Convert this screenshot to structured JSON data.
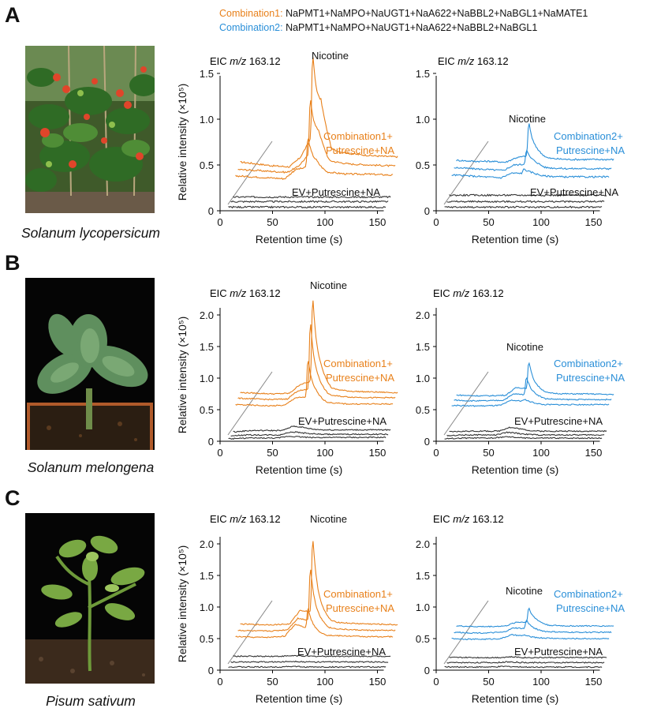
{
  "header": {
    "combination1_prefix": "Combination1:",
    "combination1_genes": " NaPMT1+NaMPO+NaUGT1+NaA622+NaBBL2+NaBGL1+NaMATE1",
    "combination2_prefix": "Combination2:",
    "combination2_genes": " NaPMT1+NaMPO+NaUGT1+NaA622+NaBBL2+NaBGL1"
  },
  "colors": {
    "combination1": "#e8801a",
    "combination2": "#2a8fd8",
    "control": "#333333",
    "axis": "#000000"
  },
  "panels": [
    {
      "letter": "A",
      "species": "Solanum lycopersicum",
      "photo_icon": "tomato-plant-photo"
    },
    {
      "letter": "B",
      "species": "Solanum melongena",
      "photo_icon": "eggplant-seedling-photo"
    },
    {
      "letter": "C",
      "species": "Pisum sativum",
      "photo_icon": "pea-seedling-photo"
    }
  ],
  "chart_data": [
    {
      "type": "line",
      "panel": "A",
      "title": "EIC m/z 163.12",
      "ylabel": "Relative intensity (×10⁵)",
      "xlabel": "Retention time (s)",
      "xlim": [
        0,
        165
      ],
      "ylim": [
        0,
        1.75
      ],
      "xticks": [
        "0",
        "50",
        "100",
        "150"
      ],
      "yticks": [
        "0",
        "0.5",
        "1.0",
        "1.5"
      ],
      "annotations": [
        "Nicotine",
        "Combination1+",
        "Putrescine+NA",
        "EV+Putrescine+NA"
      ],
      "series": [
        {
          "group": "combination",
          "name": "Combination1+Putrescine+NA",
          "values": [
            0.53,
            0.51,
            0.49,
            0.48,
            0.58,
            1.74,
            1.06,
            0.66,
            0.62,
            0.6,
            0.59
          ]
        },
        {
          "group": "combination",
          "name": "Combination1+Putrescine+NA",
          "values": [
            0.45,
            0.44,
            0.43,
            0.42,
            0.48,
            1.25,
            0.78,
            0.54,
            0.51,
            0.5,
            0.49
          ]
        },
        {
          "group": "combination",
          "name": "Combination1+Putrescine+NA",
          "values": [
            0.38,
            0.37,
            0.36,
            0.35,
            0.45,
            0.81,
            0.5,
            0.42,
            0.4,
            0.4,
            0.39
          ]
        },
        {
          "group": "control",
          "name": "EV+Putrescine+NA",
          "values": [
            0.15,
            0.15,
            0.15,
            0.15,
            0.15,
            0.15,
            0.15,
            0.15,
            0.15,
            0.15,
            0.15
          ]
        },
        {
          "group": "control",
          "name": "EV+Putrescine+NA",
          "values": [
            0.1,
            0.1,
            0.1,
            0.1,
            0.1,
            0.1,
            0.1,
            0.1,
            0.1,
            0.1,
            0.1
          ]
        },
        {
          "group": "control",
          "name": "EV+Putrescine+NA",
          "values": [
            0.04,
            0.04,
            0.04,
            0.04,
            0.04,
            0.04,
            0.04,
            0.04,
            0.04,
            0.04,
            0.04
          ]
        }
      ]
    },
    {
      "type": "line",
      "panel": "A",
      "title": "EIC m/z 163.12",
      "ylabel": "",
      "xlabel": "Retention time (s)",
      "xlim": [
        0,
        165
      ],
      "ylim": [
        0,
        1.75
      ],
      "xticks": [
        "0",
        "50",
        "100",
        "150"
      ],
      "yticks": [
        "0",
        "0.5",
        "1.0",
        "1.5"
      ],
      "annotations": [
        "Nicotine",
        "Combination2+",
        "Putrescine+NA",
        "EV+Putrescine+NA"
      ],
      "series": [
        {
          "group": "combination",
          "name": "Combination2+Putrescine+NA",
          "values": [
            0.55,
            0.54,
            0.54,
            0.53,
            0.58,
            0.98,
            0.62,
            0.57,
            0.56,
            0.56,
            0.56
          ]
        },
        {
          "group": "combination",
          "name": "Combination2+Putrescine+NA",
          "values": [
            0.47,
            0.46,
            0.45,
            0.44,
            0.5,
            0.67,
            0.52,
            0.47,
            0.46,
            0.46,
            0.46
          ]
        },
        {
          "group": "combination",
          "name": "Combination2+Putrescine+NA",
          "values": [
            0.39,
            0.38,
            0.37,
            0.36,
            0.41,
            0.46,
            0.41,
            0.38,
            0.37,
            0.37,
            0.37
          ]
        },
        {
          "group": "control",
          "name": "EV+Putrescine+NA",
          "values": [
            0.17,
            0.17,
            0.17,
            0.17,
            0.17,
            0.17,
            0.17,
            0.17,
            0.17,
            0.17,
            0.17
          ]
        },
        {
          "group": "control",
          "name": "EV+Putrescine+NA",
          "values": [
            0.1,
            0.1,
            0.1,
            0.1,
            0.1,
            0.1,
            0.1,
            0.1,
            0.1,
            0.1,
            0.1
          ]
        },
        {
          "group": "control",
          "name": "EV+Putrescine+NA",
          "values": [
            0.04,
            0.04,
            0.04,
            0.04,
            0.04,
            0.04,
            0.04,
            0.04,
            0.04,
            0.04,
            0.04
          ]
        }
      ]
    },
    {
      "type": "line",
      "panel": "B",
      "title": "EIC m/z 163.12",
      "ylabel": "Relative intensity (×10⁵)",
      "xlabel": "Retention time (s)",
      "xlim": [
        0,
        165
      ],
      "ylim": [
        0,
        2.35
      ],
      "xticks": [
        "0",
        "50",
        "100",
        "150"
      ],
      "yticks": [
        "0",
        "0.5",
        "1.0",
        "1.5",
        "2.0"
      ],
      "annotations": [
        "Nicotine",
        "Combination1+",
        "Putrescine+NA",
        "EV+Putrescine+NA"
      ],
      "series": [
        {
          "group": "combination",
          "name": "Combination1+Putrescine+NA",
          "values": [
            0.77,
            0.76,
            0.75,
            0.76,
            0.9,
            2.33,
            1.0,
            0.82,
            0.79,
            0.78,
            0.77
          ]
        },
        {
          "group": "combination",
          "name": "Combination1+Putrescine+NA",
          "values": [
            0.68,
            0.67,
            0.66,
            0.67,
            0.8,
            1.93,
            0.84,
            0.72,
            0.7,
            0.69,
            0.69
          ]
        },
        {
          "group": "combination",
          "name": "Combination1+Putrescine+NA",
          "values": [
            0.58,
            0.57,
            0.56,
            0.57,
            0.69,
            1.32,
            0.7,
            0.61,
            0.59,
            0.59,
            0.59
          ]
        },
        {
          "group": "control",
          "name": "EV+Putrescine+NA",
          "values": [
            0.15,
            0.17,
            0.17,
            0.17,
            0.24,
            0.21,
            0.19,
            0.18,
            0.18,
            0.18,
            0.18
          ]
        },
        {
          "group": "control",
          "name": "EV+Putrescine+NA",
          "values": [
            0.09,
            0.1,
            0.1,
            0.1,
            0.15,
            0.13,
            0.12,
            0.11,
            0.11,
            0.11,
            0.11
          ]
        },
        {
          "group": "control",
          "name": "EV+Putrescine+NA",
          "values": [
            0.04,
            0.05,
            0.05,
            0.05,
            0.08,
            0.07,
            0.06,
            0.06,
            0.06,
            0.06,
            0.06
          ]
        }
      ]
    },
    {
      "type": "line",
      "panel": "B",
      "title": "EIC m/z 163.12",
      "ylabel": "",
      "xlabel": "Retention time (s)",
      "xlim": [
        0,
        165
      ],
      "ylim": [
        0,
        2.35
      ],
      "xticks": [
        "0",
        "50",
        "100",
        "150"
      ],
      "yticks": [
        "0",
        "0.5",
        "1.0",
        "1.5",
        "2.0"
      ],
      "annotations": [
        "Nicotine",
        "Combination2+",
        "Putrescine+NA",
        "EV+Putrescine+NA"
      ],
      "series": [
        {
          "group": "combination",
          "name": "Combination2+Putrescine+NA",
          "values": [
            0.73,
            0.72,
            0.72,
            0.73,
            0.85,
            1.28,
            0.82,
            0.76,
            0.75,
            0.75,
            0.74
          ]
        },
        {
          "group": "combination",
          "name": "Combination2+Putrescine+NA",
          "values": [
            0.65,
            0.64,
            0.64,
            0.65,
            0.75,
            1.03,
            0.72,
            0.67,
            0.66,
            0.66,
            0.66
          ]
        },
        {
          "group": "combination",
          "name": "Combination2+Putrescine+NA",
          "values": [
            0.57,
            0.56,
            0.56,
            0.57,
            0.65,
            0.67,
            0.61,
            0.58,
            0.58,
            0.58,
            0.58
          ]
        },
        {
          "group": "control",
          "name": "EV+Putrescine+NA",
          "values": [
            0.15,
            0.16,
            0.16,
            0.16,
            0.22,
            0.19,
            0.17,
            0.16,
            0.16,
            0.16,
            0.16
          ]
        },
        {
          "group": "control",
          "name": "EV+Putrescine+NA",
          "values": [
            0.09,
            0.1,
            0.1,
            0.1,
            0.14,
            0.12,
            0.11,
            0.1,
            0.1,
            0.1,
            0.1
          ]
        },
        {
          "group": "control",
          "name": "EV+Putrescine+NA",
          "values": [
            0.04,
            0.05,
            0.05,
            0.05,
            0.07,
            0.06,
            0.05,
            0.05,
            0.05,
            0.05,
            0.05
          ]
        }
      ]
    },
    {
      "type": "line",
      "panel": "C",
      "title": "EIC m/z 163.12",
      "ylabel": "Relative intensity (×10⁵)",
      "xlabel": "Retention time (s)",
      "xlim": [
        0,
        165
      ],
      "ylim": [
        0,
        2.3
      ],
      "xticks": [
        "0",
        "50",
        "100",
        "150"
      ],
      "yticks": [
        "0",
        "0.5",
        "1.0",
        "1.5",
        "2.0"
      ],
      "annotations": [
        "Nicotine",
        "Combination1+",
        "Putrescine+NA",
        "EV+Putrescine+NA"
      ],
      "series": [
        {
          "group": "combination",
          "name": "Combination1+Putrescine+NA",
          "values": [
            0.73,
            0.72,
            0.72,
            0.73,
            0.95,
            2.15,
            0.88,
            0.76,
            0.74,
            0.73,
            0.72
          ]
        },
        {
          "group": "combination",
          "name": "Combination1+Putrescine+NA",
          "values": [
            0.63,
            0.62,
            0.62,
            0.64,
            0.82,
            1.66,
            0.76,
            0.66,
            0.64,
            0.63,
            0.63
          ]
        },
        {
          "group": "combination",
          "name": "Combination1+Putrescine+NA",
          "values": [
            0.53,
            0.52,
            0.52,
            0.54,
            0.73,
            1.0,
            0.6,
            0.55,
            0.54,
            0.53,
            0.53
          ]
        },
        {
          "group": "control",
          "name": "EV+Putrescine+NA",
          "values": [
            0.22,
            0.22,
            0.22,
            0.22,
            0.23,
            0.22,
            0.22,
            0.22,
            0.22,
            0.22,
            0.22
          ]
        },
        {
          "group": "control",
          "name": "EV+Putrescine+NA",
          "values": [
            0.13,
            0.13,
            0.13,
            0.13,
            0.14,
            0.13,
            0.13,
            0.13,
            0.13,
            0.13,
            0.13
          ]
        },
        {
          "group": "control",
          "name": "EV+Putrescine+NA",
          "values": [
            0.05,
            0.05,
            0.05,
            0.05,
            0.06,
            0.05,
            0.05,
            0.05,
            0.05,
            0.05,
            0.05
          ]
        }
      ]
    },
    {
      "type": "line",
      "panel": "C",
      "title": "EIC m/z 163.12",
      "ylabel": "",
      "xlabel": "Retention time (s)",
      "xlim": [
        0,
        165
      ],
      "ylim": [
        0,
        2.3
      ],
      "xticks": [
        "0",
        "50",
        "100",
        "150"
      ],
      "yticks": [
        "0",
        "0.5",
        "1.0",
        "1.5",
        "2.0"
      ],
      "annotations": [
        "Nicotine",
        "Combination2+",
        "Putrescine+NA",
        "EV+Putrescine+NA"
      ],
      "series": [
        {
          "group": "combination",
          "name": "Combination2+Putrescine+NA",
          "values": [
            0.7,
            0.69,
            0.69,
            0.7,
            0.76,
            1.0,
            0.76,
            0.71,
            0.7,
            0.7,
            0.7
          ]
        },
        {
          "group": "combination",
          "name": "Combination2+Putrescine+NA",
          "values": [
            0.6,
            0.59,
            0.59,
            0.6,
            0.67,
            0.8,
            0.64,
            0.61,
            0.6,
            0.6,
            0.6
          ]
        },
        {
          "group": "combination",
          "name": "Combination2+Putrescine+NA",
          "values": [
            0.5,
            0.49,
            0.49,
            0.5,
            0.56,
            0.56,
            0.52,
            0.51,
            0.5,
            0.5,
            0.5
          ]
        },
        {
          "group": "control",
          "name": "EV+Putrescine+NA",
          "values": [
            0.2,
            0.2,
            0.2,
            0.2,
            0.21,
            0.2,
            0.2,
            0.2,
            0.2,
            0.2,
            0.2
          ]
        },
        {
          "group": "control",
          "name": "EV+Putrescine+NA",
          "values": [
            0.12,
            0.12,
            0.12,
            0.12,
            0.13,
            0.12,
            0.12,
            0.12,
            0.12,
            0.12,
            0.12
          ]
        },
        {
          "group": "control",
          "name": "EV+Putrescine+NA",
          "values": [
            0.05,
            0.05,
            0.05,
            0.05,
            0.06,
            0.05,
            0.05,
            0.05,
            0.05,
            0.05,
            0.05
          ]
        }
      ]
    }
  ]
}
